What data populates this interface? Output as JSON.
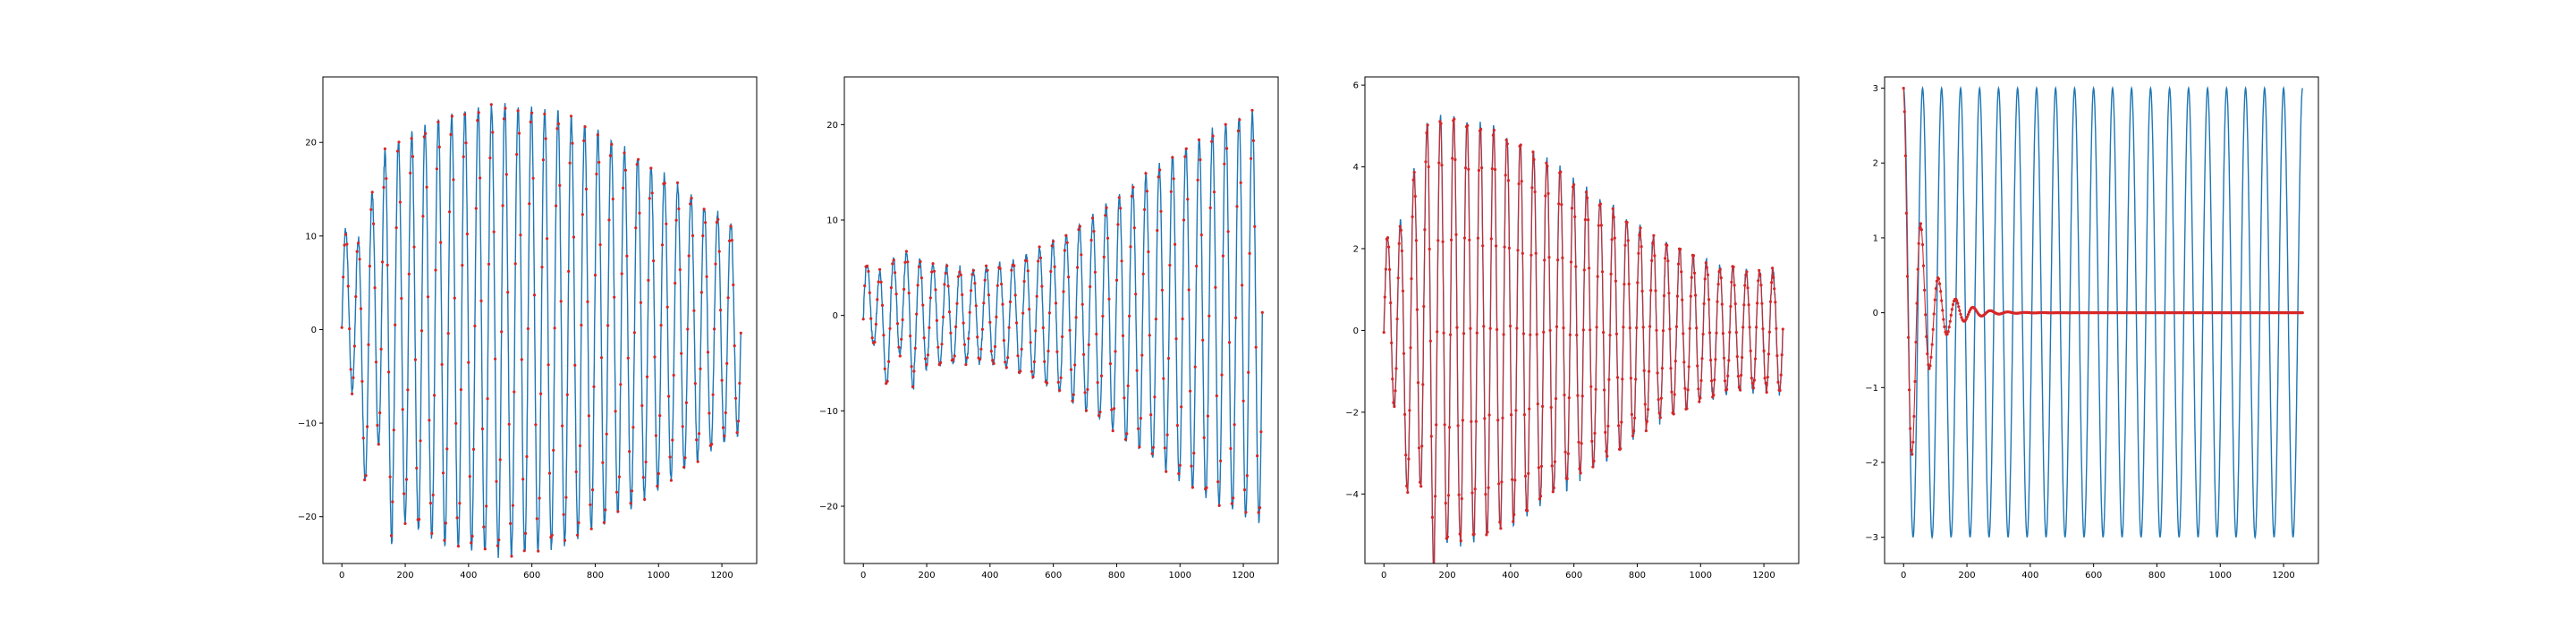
{
  "figure": {
    "background": "#ffffff"
  },
  "colors": {
    "line": "#1f77b4",
    "marker": "#d62728",
    "axes": "#000000"
  },
  "chart_data": [
    {
      "type": "line",
      "xlim": [
        -60,
        1310
      ],
      "ylim": [
        -25,
        27
      ],
      "xticks": [
        0,
        200,
        400,
        600,
        800,
        1000,
        1200
      ],
      "yticks": [
        -20,
        -10,
        0,
        10,
        20
      ],
      "grid": false,
      "series": [
        {
          "style": "line",
          "color": "#1f77b4",
          "model": "forced-oscillation",
          "params": {
            "x_start": 0,
            "x_end": 1260,
            "period": 42,
            "amplitude_range": [
              6,
              24
            ],
            "noise": 1.0
          }
        },
        {
          "style": "markers",
          "color": "#d62728",
          "model": "samples-of-line",
          "params": {
            "step": 4
          }
        }
      ]
    },
    {
      "type": "line",
      "xlim": [
        -60,
        1310
      ],
      "ylim": [
        -26,
        25
      ],
      "xticks": [
        0,
        200,
        400,
        600,
        800,
        1000,
        1200
      ],
      "yticks": [
        -20,
        -10,
        0,
        10,
        20
      ],
      "grid": false,
      "series": [
        {
          "style": "line",
          "color": "#1f77b4",
          "model": "forced-oscillation",
          "params": {
            "x_start": 0,
            "x_end": 1260,
            "period": 42,
            "amplitude_range": [
              3,
              22
            ],
            "noise": 0.8
          }
        },
        {
          "style": "markers",
          "color": "#d62728",
          "model": "samples-of-line",
          "params": {
            "step": 4
          }
        }
      ]
    },
    {
      "type": "line",
      "xlim": [
        -60,
        1310
      ],
      "ylim": [
        -5.7,
        6.2
      ],
      "xticks": [
        0,
        200,
        400,
        600,
        800,
        1000,
        1200
      ],
      "yticks": [
        -4,
        -2,
        0,
        2,
        4,
        6
      ],
      "grid": false,
      "series": [
        {
          "style": "line",
          "color": "#1f77b4",
          "model": "forced-oscillation",
          "params": {
            "x_start": 0,
            "x_end": 1260,
            "period": 42,
            "amplitude_range": [
              1,
              5.3
            ],
            "noise": 0.25
          }
        },
        {
          "style": "line+markers",
          "color": "#d62728",
          "model": "samples-of-line",
          "params": {
            "step": 3
          }
        }
      ]
    },
    {
      "type": "line",
      "xlim": [
        -60,
        1310
      ],
      "ylim": [
        -3.35,
        3.15
      ],
      "xticks": [
        0,
        200,
        400,
        600,
        800,
        1000,
        1200
      ],
      "yticks": [
        -3,
        -2,
        -1,
        0,
        1,
        2,
        3
      ],
      "grid": false,
      "series": [
        {
          "style": "line",
          "color": "#1f77b4",
          "model": "cosine",
          "params": {
            "x_start": 0,
            "x_end": 1260,
            "period": 60,
            "amplitude": 3
          }
        },
        {
          "style": "line+markers",
          "color": "#d62728",
          "model": "damped-cosine",
          "params": {
            "x_start": 0,
            "x_end": 1260,
            "period": 55,
            "amplitude": 3,
            "decay": 0.017,
            "step": 3
          }
        }
      ]
    }
  ]
}
